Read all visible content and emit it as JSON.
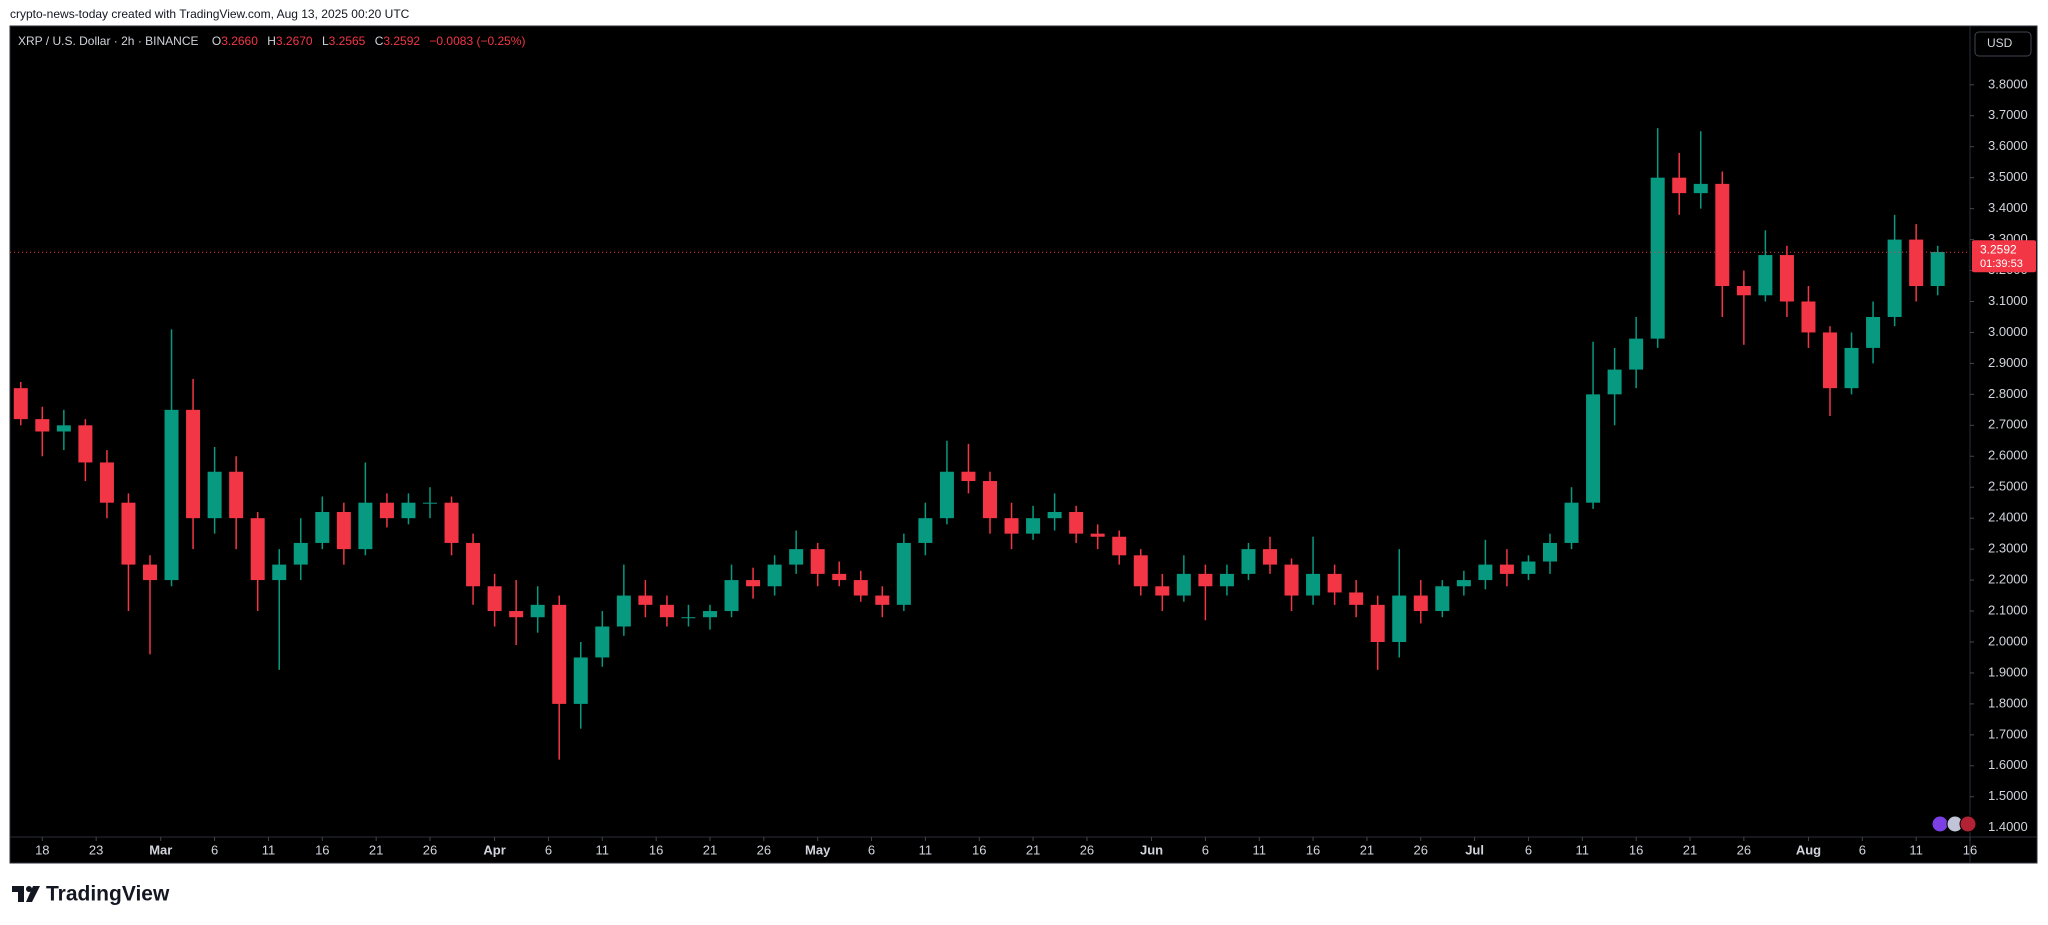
{
  "header": {
    "attribution": "crypto-news-today created with TradingView.com, Aug 13, 2025 00:20 UTC",
    "symbol": "XRP / U.S. Dollar · 2h · BINANCE",
    "open_label": "O",
    "open": "3.2660",
    "high_label": "H",
    "high": "3.2670",
    "low_label": "L",
    "low": "3.2565",
    "close_label": "C",
    "close": "3.2592",
    "change": "−0.0083 (−0.25%)",
    "currency": "USD",
    "countdown": "01:39:53",
    "brand": "TradingView"
  },
  "chart_data": {
    "type": "candlestick",
    "up_color": "#089981",
    "down_color": "#f23645",
    "grid": false,
    "x": [
      "Feb 15",
      "Feb 17",
      "Feb 19",
      "Feb 21",
      "Feb 23",
      "Feb 25",
      "Feb 27",
      "Mar 1",
      "Mar 3",
      "Mar 5",
      "Mar 7",
      "Mar 9",
      "Mar 11",
      "Mar 13",
      "Mar 15",
      "Mar 17",
      "Mar 19",
      "Mar 21",
      "Mar 23",
      "Mar 25",
      "Mar 27",
      "Mar 29",
      "Mar 31",
      "Apr 2",
      "Apr 4",
      "Apr 6",
      "Apr 8",
      "Apr 10",
      "Apr 12",
      "Apr 14",
      "Apr 16",
      "Apr 18",
      "Apr 20",
      "Apr 22",
      "Apr 24",
      "Apr 26",
      "Apr 28",
      "Apr 30",
      "May 2",
      "May 4",
      "May 6",
      "May 8",
      "May 10",
      "May 12",
      "May 14",
      "May 16",
      "May 18",
      "May 20",
      "May 22",
      "May 24",
      "May 26",
      "May 28",
      "May 30",
      "Jun 1",
      "Jun 3",
      "Jun 5",
      "Jun 7",
      "Jun 9",
      "Jun 11",
      "Jun 13",
      "Jun 15",
      "Jun 17",
      "Jun 19",
      "Jun 21",
      "Jun 23",
      "Jun 25",
      "Jun 27",
      "Jun 29",
      "Jul 1",
      "Jul 3",
      "Jul 5",
      "Jul 7",
      "Jul 9",
      "Jul 11",
      "Jul 13",
      "Jul 15",
      "Jul 17",
      "Jul 19",
      "Jul 21",
      "Jul 23",
      "Jul 25",
      "Jul 27",
      "Jul 29",
      "Jul 31",
      "Aug 2",
      "Aug 4",
      "Aug 6",
      "Aug 8",
      "Aug 10",
      "Aug 12"
    ],
    "open": [
      2.82,
      2.72,
      2.68,
      2.7,
      2.58,
      2.45,
      2.25,
      2.2,
      2.75,
      2.4,
      2.55,
      2.4,
      2.2,
      2.25,
      2.32,
      2.42,
      2.3,
      2.45,
      2.4,
      2.45,
      2.45,
      2.32,
      2.18,
      2.1,
      2.08,
      2.12,
      1.8,
      1.95,
      2.05,
      2.15,
      2.12,
      2.08,
      2.08,
      2.1,
      2.2,
      2.18,
      2.25,
      2.3,
      2.22,
      2.2,
      2.15,
      2.12,
      2.32,
      2.4,
      2.55,
      2.52,
      2.4,
      2.35,
      2.4,
      2.42,
      2.35,
      2.34,
      2.28,
      2.18,
      2.15,
      2.22,
      2.18,
      2.22,
      2.3,
      2.25,
      2.15,
      2.22,
      2.16,
      2.12,
      2.0,
      2.15,
      2.1,
      2.18,
      2.2,
      2.25,
      2.22,
      2.26,
      2.32,
      2.45,
      2.8,
      2.88,
      2.98,
      3.5,
      3.45,
      3.48,
      3.15,
      3.12,
      3.25,
      3.1,
      3.0,
      2.82,
      2.95,
      3.05,
      3.3,
      3.15
    ],
    "high": [
      2.84,
      2.76,
      2.75,
      2.72,
      2.62,
      2.48,
      2.28,
      3.01,
      2.85,
      2.63,
      2.6,
      2.42,
      2.3,
      2.4,
      2.47,
      2.45,
      2.58,
      2.48,
      2.48,
      2.5,
      2.47,
      2.35,
      2.22,
      2.2,
      2.18,
      2.15,
      2.0,
      2.1,
      2.25,
      2.2,
      2.15,
      2.12,
      2.12,
      2.25,
      2.24,
      2.28,
      2.36,
      2.32,
      2.26,
      2.23,
      2.18,
      2.35,
      2.45,
      2.65,
      2.64,
      2.55,
      2.45,
      2.44,
      2.48,
      2.44,
      2.38,
      2.36,
      2.3,
      2.22,
      2.28,
      2.25,
      2.25,
      2.32,
      2.34,
      2.27,
      2.34,
      2.25,
      2.2,
      2.15,
      2.3,
      2.2,
      2.2,
      2.23,
      2.33,
      2.3,
      2.28,
      2.35,
      2.5,
      2.97,
      2.95,
      3.05,
      3.66,
      3.58,
      3.65,
      3.52,
      3.2,
      3.33,
      3.28,
      3.15,
      3.02,
      3.0,
      3.1,
      3.38,
      3.35,
      3.28
    ],
    "low": [
      2.7,
      2.6,
      2.62,
      2.52,
      2.4,
      2.1,
      1.96,
      2.18,
      2.3,
      2.35,
      2.3,
      2.1,
      1.91,
      2.2,
      2.3,
      2.25,
      2.28,
      2.37,
      2.38,
      2.4,
      2.28,
      2.12,
      2.05,
      1.99,
      2.03,
      1.62,
      1.72,
      1.92,
      2.02,
      2.08,
      2.05,
      2.05,
      2.04,
      2.08,
      2.14,
      2.15,
      2.22,
      2.18,
      2.18,
      2.13,
      2.08,
      2.1,
      2.28,
      2.38,
      2.48,
      2.35,
      2.3,
      2.33,
      2.36,
      2.32,
      2.3,
      2.25,
      2.15,
      2.1,
      2.13,
      2.07,
      2.15,
      2.2,
      2.22,
      2.1,
      2.12,
      2.12,
      2.08,
      1.91,
      1.95,
      2.06,
      2.08,
      2.15,
      2.17,
      2.18,
      2.2,
      2.22,
      2.3,
      2.43,
      2.7,
      2.82,
      2.95,
      3.38,
      3.4,
      3.05,
      2.96,
      3.1,
      3.05,
      2.95,
      2.73,
      2.8,
      2.9,
      3.02,
      3.1,
      3.12
    ],
    "close": [
      2.72,
      2.68,
      2.7,
      2.58,
      2.45,
      2.25,
      2.2,
      2.75,
      2.4,
      2.55,
      2.4,
      2.2,
      2.25,
      2.32,
      2.42,
      2.3,
      2.45,
      2.4,
      2.45,
      2.45,
      2.32,
      2.18,
      2.1,
      2.08,
      2.12,
      1.8,
      1.95,
      2.05,
      2.15,
      2.12,
      2.08,
      2.08,
      2.1,
      2.2,
      2.18,
      2.25,
      2.3,
      2.22,
      2.2,
      2.15,
      2.12,
      2.32,
      2.4,
      2.55,
      2.52,
      2.4,
      2.35,
      2.4,
      2.42,
      2.35,
      2.34,
      2.28,
      2.18,
      2.15,
      2.22,
      2.18,
      2.22,
      2.3,
      2.25,
      2.15,
      2.22,
      2.16,
      2.12,
      2.0,
      2.15,
      2.1,
      2.18,
      2.2,
      2.25,
      2.22,
      2.26,
      2.32,
      2.45,
      2.8,
      2.88,
      2.98,
      3.5,
      3.45,
      3.48,
      3.15,
      3.12,
      3.25,
      3.1,
      3.0,
      2.82,
      2.95,
      3.05,
      3.3,
      3.15,
      3.26
    ],
    "last_price": 3.2592,
    "xlim": [
      "Feb 15",
      "Aug 16"
    ],
    "xticks": [
      {
        "value": "Feb 18",
        "label": "18"
      },
      {
        "value": "Feb 23",
        "label": "23"
      },
      {
        "value": "Mar 1",
        "label": "Mar"
      },
      {
        "value": "Mar 6",
        "label": "6"
      },
      {
        "value": "Mar 11",
        "label": "11"
      },
      {
        "value": "Mar 16",
        "label": "16"
      },
      {
        "value": "Mar 21",
        "label": "21"
      },
      {
        "value": "Mar 26",
        "label": "26"
      },
      {
        "value": "Apr 1",
        "label": "Apr"
      },
      {
        "value": "Apr 6",
        "label": "6"
      },
      {
        "value": "Apr 11",
        "label": "11"
      },
      {
        "value": "Apr 16",
        "label": "16"
      },
      {
        "value": "Apr 21",
        "label": "21"
      },
      {
        "value": "Apr 26",
        "label": "26"
      },
      {
        "value": "May 1",
        "label": "May"
      },
      {
        "value": "May 6",
        "label": "6"
      },
      {
        "value": "May 11",
        "label": "11"
      },
      {
        "value": "May 16",
        "label": "16"
      },
      {
        "value": "May 21",
        "label": "21"
      },
      {
        "value": "May 26",
        "label": "26"
      },
      {
        "value": "Jun 1",
        "label": "Jun"
      },
      {
        "value": "Jun 6",
        "label": "6"
      },
      {
        "value": "Jun 11",
        "label": "11"
      },
      {
        "value": "Jun 16",
        "label": "16"
      },
      {
        "value": "Jun 21",
        "label": "21"
      },
      {
        "value": "Jun 26",
        "label": "26"
      },
      {
        "value": "Jul 1",
        "label": "Jul"
      },
      {
        "value": "Jul 6",
        "label": "6"
      },
      {
        "value": "Jul 11",
        "label": "11"
      },
      {
        "value": "Jul 16",
        "label": "16"
      },
      {
        "value": "Jul 21",
        "label": "21"
      },
      {
        "value": "Jul 26",
        "label": "26"
      },
      {
        "value": "Aug 1",
        "label": "Aug"
      },
      {
        "value": "Aug 6",
        "label": "6"
      },
      {
        "value": "Aug 11",
        "label": "11"
      },
      {
        "value": "Aug 16",
        "label": "16"
      }
    ],
    "ylim": [
      1.37,
      3.99
    ],
    "yticks": [
      {
        "value": 1.4,
        "label": "1.4000"
      },
      {
        "value": 1.5,
        "label": "1.5000"
      },
      {
        "value": 1.6,
        "label": "1.6000"
      },
      {
        "value": 1.7,
        "label": "1.7000"
      },
      {
        "value": 1.8,
        "label": "1.8000"
      },
      {
        "value": 1.9,
        "label": "1.9000"
      },
      {
        "value": 2.0,
        "label": "2.0000"
      },
      {
        "value": 2.1,
        "label": "2.1000"
      },
      {
        "value": 2.2,
        "label": "2.2000"
      },
      {
        "value": 2.3,
        "label": "2.3000"
      },
      {
        "value": 2.4,
        "label": "2.4000"
      },
      {
        "value": 2.5,
        "label": "2.5000"
      },
      {
        "value": 2.6,
        "label": "2.6000"
      },
      {
        "value": 2.7,
        "label": "2.7000"
      },
      {
        "value": 2.8,
        "label": "2.8000"
      },
      {
        "value": 2.9,
        "label": "2.9000"
      },
      {
        "value": 3.0,
        "label": "3.0000"
      },
      {
        "value": 3.1,
        "label": "3.1000"
      },
      {
        "value": 3.2,
        "label": "3.2000"
      },
      {
        "value": 3.3,
        "label": "3.3000"
      },
      {
        "value": 3.4,
        "label": "3.4000"
      },
      {
        "value": 3.5,
        "label": "3.5000"
      },
      {
        "value": 3.6,
        "label": "3.6000"
      },
      {
        "value": 3.7,
        "label": "3.7000"
      },
      {
        "value": 3.8,
        "label": "3.8000"
      }
    ]
  }
}
